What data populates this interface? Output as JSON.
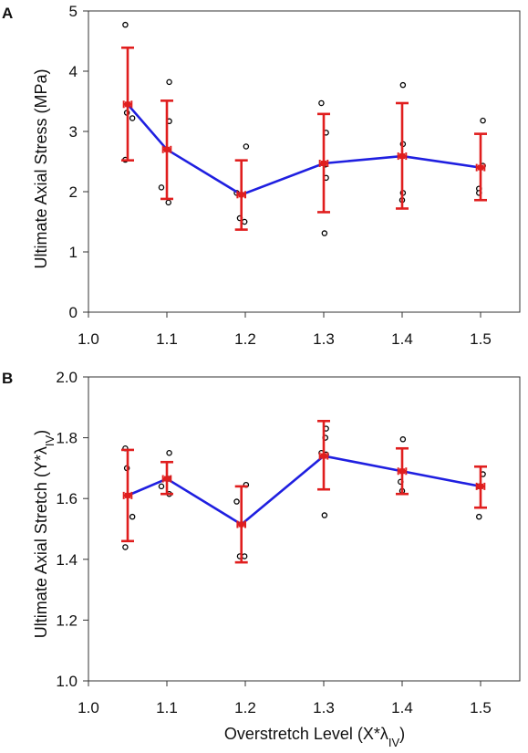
{
  "colors": {
    "mean_line": "#1f1fe0",
    "error_bar": "#e01e1e",
    "points": "#000000",
    "axis": "#333333"
  },
  "chart_data": [
    {
      "panel": "A",
      "type": "line",
      "ylabel": "Ultimate Axial Stress (MPa)",
      "xlabel": "",
      "xlim": [
        1.0,
        1.55
      ],
      "ylim": [
        0,
        5
      ],
      "x_ticks": [
        1.0,
        1.1,
        1.2,
        1.3,
        1.4,
        1.5
      ],
      "x_tick_labels": [
        "1.0",
        "1.1",
        "1.2",
        "1.3",
        "1.4",
        "1.5"
      ],
      "y_ticks": [
        0,
        1,
        2,
        3,
        4,
        5
      ],
      "y_tick_labels": [
        "0",
        "1",
        "2",
        "3",
        "4",
        "5"
      ],
      "grid": false,
      "mean": {
        "x": [
          1.05,
          1.1,
          1.195,
          1.3,
          1.4,
          1.5
        ],
        "y": [
          3.45,
          2.7,
          1.95,
          2.47,
          2.59,
          2.4
        ],
        "err_low": [
          2.52,
          1.88,
          1.37,
          1.66,
          1.72,
          1.86
        ],
        "err_high": [
          4.39,
          3.51,
          2.52,
          3.29,
          3.47,
          2.96
        ],
        "x_err": 0.005
      },
      "points": [
        {
          "x": 1.047,
          "y": 4.77
        },
        {
          "x": 1.049,
          "y": 3.31
        },
        {
          "x": 1.047,
          "y": 2.53
        },
        {
          "x": 1.056,
          "y": 3.22
        },
        {
          "x": 1.093,
          "y": 2.07
        },
        {
          "x": 1.103,
          "y": 3.82
        },
        {
          "x": 1.103,
          "y": 3.17
        },
        {
          "x": 1.102,
          "y": 1.82
        },
        {
          "x": 1.189,
          "y": 1.98
        },
        {
          "x": 1.193,
          "y": 1.56
        },
        {
          "x": 1.201,
          "y": 2.75
        },
        {
          "x": 1.199,
          "y": 1.5
        },
        {
          "x": 1.297,
          "y": 3.47
        },
        {
          "x": 1.303,
          "y": 2.98
        },
        {
          "x": 1.302,
          "y": 2.45
        },
        {
          "x": 1.303,
          "y": 2.23
        },
        {
          "x": 1.301,
          "y": 1.31
        },
        {
          "x": 1.401,
          "y": 3.77
        },
        {
          "x": 1.401,
          "y": 2.79
        },
        {
          "x": 1.401,
          "y": 1.98
        },
        {
          "x": 1.4,
          "y": 1.86
        },
        {
          "x": 1.503,
          "y": 3.18
        },
        {
          "x": 1.503,
          "y": 2.43
        },
        {
          "x": 1.498,
          "y": 2.05
        },
        {
          "x": 1.498,
          "y": 1.98
        }
      ]
    },
    {
      "panel": "B",
      "type": "line",
      "ylabel": "Ultimate Axial Stretch (Y*λIV)",
      "xlabel": "Overstretch Level (X*λIV)",
      "xlim": [
        1.0,
        1.55
      ],
      "ylim": [
        1.0,
        2.0
      ],
      "x_ticks": [
        1.0,
        1.1,
        1.2,
        1.3,
        1.4,
        1.5
      ],
      "x_tick_labels": [
        "1.0",
        "1.1",
        "1.2",
        "1.3",
        "1.4",
        "1.5"
      ],
      "y_ticks": [
        1.0,
        1.2,
        1.4,
        1.6,
        1.8,
        2.0
      ],
      "y_tick_labels": [
        "1.0",
        "1.2",
        "1.4",
        "1.6",
        "1.8",
        "2.0"
      ],
      "grid": false,
      "mean": {
        "x": [
          1.05,
          1.1,
          1.195,
          1.3,
          1.4,
          1.5
        ],
        "y": [
          1.61,
          1.665,
          1.515,
          1.74,
          1.69,
          1.64
        ],
        "err_low": [
          1.46,
          1.615,
          1.39,
          1.63,
          1.615,
          1.57
        ],
        "err_high": [
          1.76,
          1.72,
          1.64,
          1.855,
          1.765,
          1.705
        ],
        "x_err": 0.005
      },
      "points": [
        {
          "x": 1.047,
          "y": 1.765
        },
        {
          "x": 1.049,
          "y": 1.7
        },
        {
          "x": 1.056,
          "y": 1.54
        },
        {
          "x": 1.047,
          "y": 1.44
        },
        {
          "x": 1.093,
          "y": 1.64
        },
        {
          "x": 1.103,
          "y": 1.75
        },
        {
          "x": 1.103,
          "y": 1.615
        },
        {
          "x": 1.102,
          "y": 1.665
        },
        {
          "x": 1.189,
          "y": 1.59
        },
        {
          "x": 1.201,
          "y": 1.645
        },
        {
          "x": 1.193,
          "y": 1.41
        },
        {
          "x": 1.199,
          "y": 1.41
        },
        {
          "x": 1.303,
          "y": 1.83
        },
        {
          "x": 1.302,
          "y": 1.8
        },
        {
          "x": 1.297,
          "y": 1.75
        },
        {
          "x": 1.303,
          "y": 1.745
        },
        {
          "x": 1.301,
          "y": 1.545
        },
        {
          "x": 1.401,
          "y": 1.795
        },
        {
          "x": 1.398,
          "y": 1.655
        },
        {
          "x": 1.4,
          "y": 1.625
        },
        {
          "x": 1.503,
          "y": 1.68
        },
        {
          "x": 1.498,
          "y": 1.64
        },
        {
          "x": 1.498,
          "y": 1.54
        }
      ]
    }
  ]
}
